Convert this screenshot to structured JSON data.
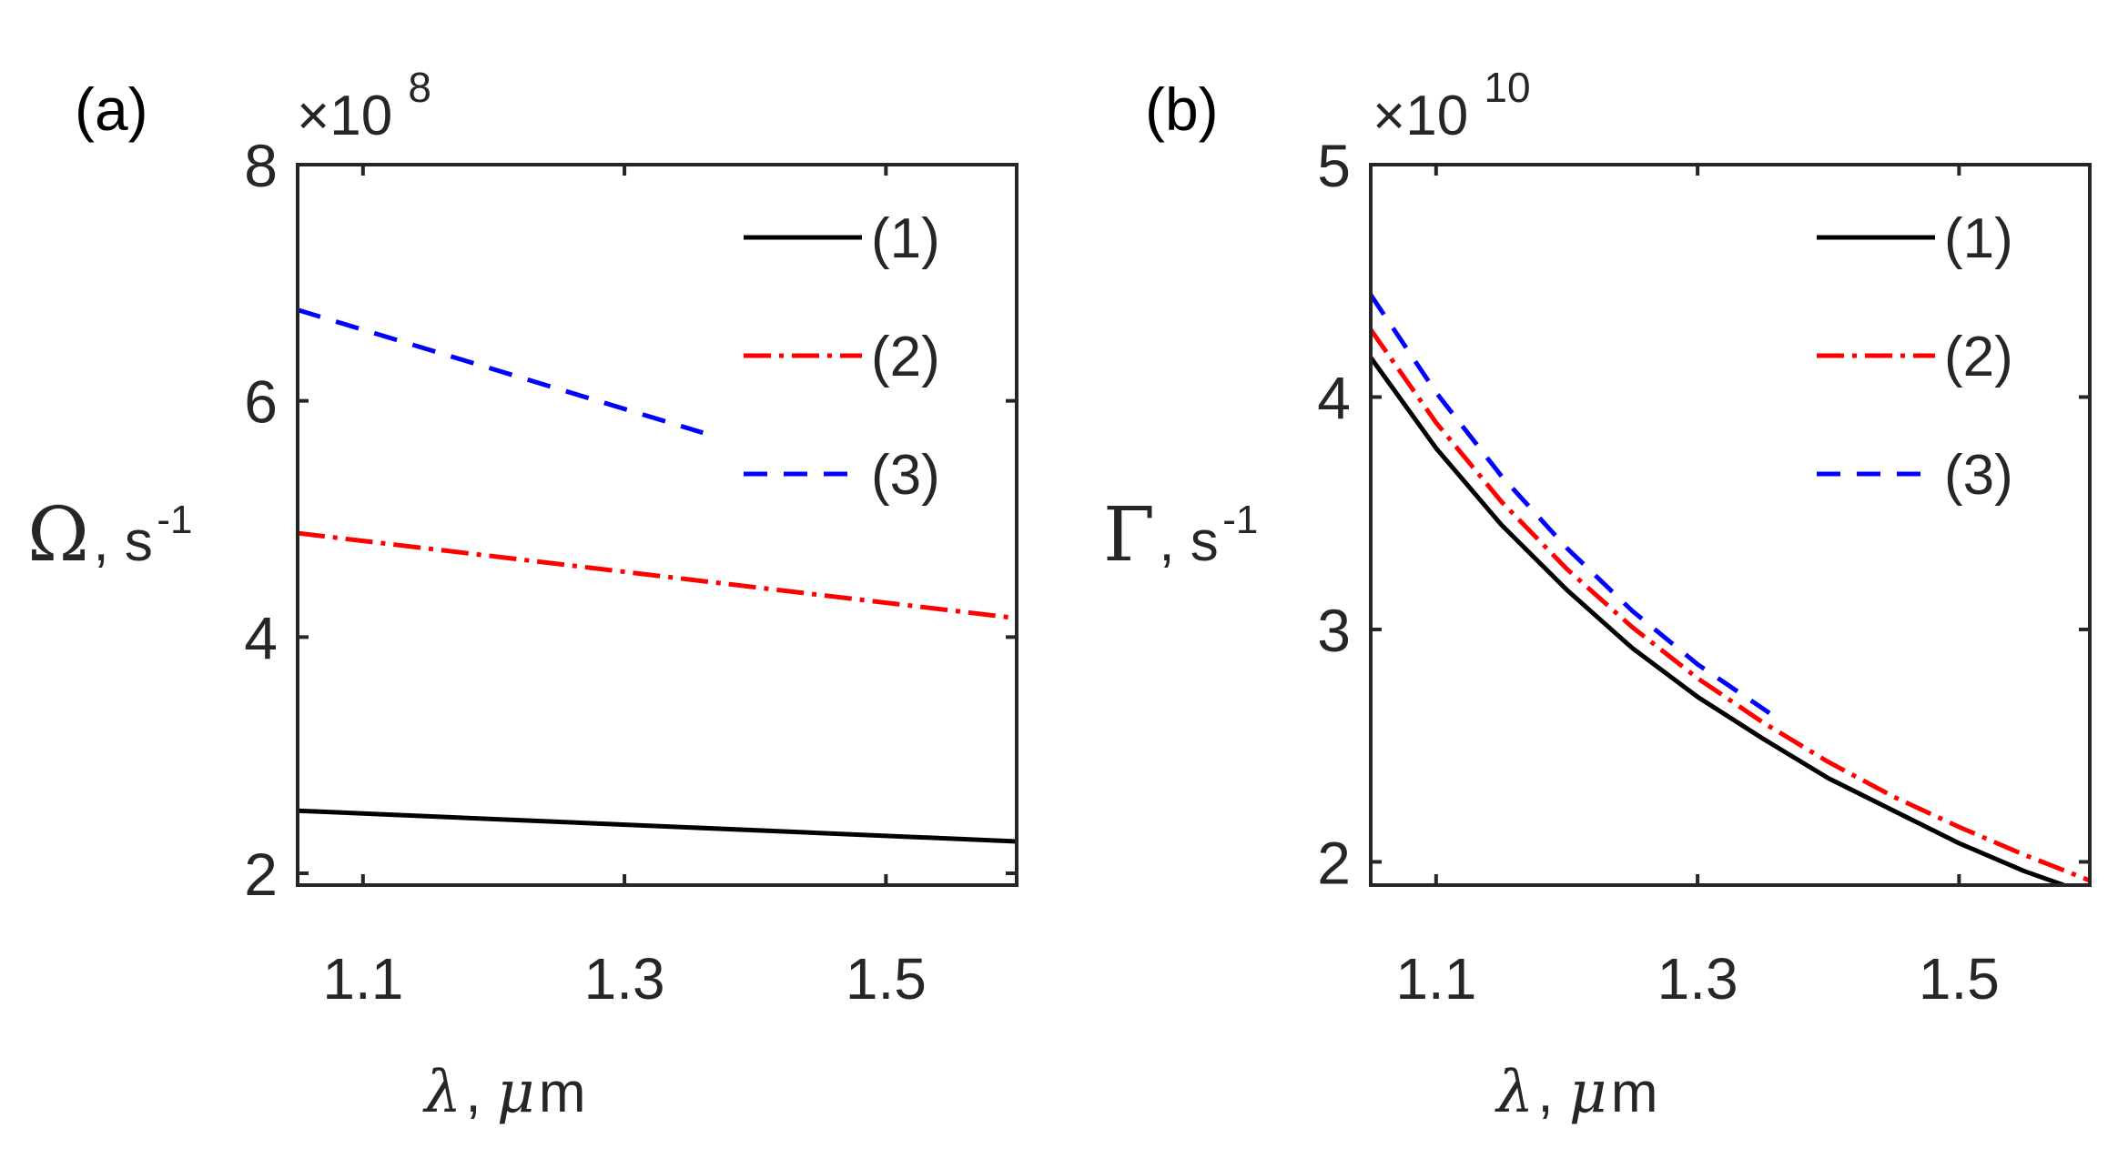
{
  "figure": {
    "panels": [
      {
        "panel_label": "(a)",
        "exponent_prefix": "×10",
        "exponent_power": "8",
        "ylabel_symbol": "Ω",
        "ylabel_unit": ", s",
        "ylabel_unit_power": "-1",
        "xlabel_symbol": "λ",
        "xlabel_mid": ", ",
        "xlabel_mu": "μ",
        "xlabel_unit": "m"
      },
      {
        "panel_label": "(b)",
        "exponent_prefix": "×10",
        "exponent_power": "10",
        "ylabel_symbol": "Γ",
        "ylabel_unit": ", s",
        "ylabel_unit_power": "-1",
        "xlabel_symbol": "λ",
        "xlabel_mid": ", ",
        "xlabel_mu": "μ",
        "xlabel_unit": "m"
      }
    ]
  },
  "chart_data": [
    {
      "type": "line",
      "title": "(a)",
      "xlabel": "λ, μm",
      "ylabel": "Ω, s-1",
      "y_scale_factor": "×10^8",
      "xlim": [
        1.05,
        1.6
      ],
      "ylim": [
        1.9,
        8
      ],
      "xticks": [
        1.1,
        1.3,
        1.5
      ],
      "xtick_labels": [
        "1.1",
        "1.3",
        "1.5"
      ],
      "yticks": [
        2,
        4,
        6,
        8
      ],
      "ytick_labels": [
        "2",
        "4",
        "6",
        "8"
      ],
      "legend_position": "top-right",
      "series": [
        {
          "name": "(1)",
          "color": "#000000",
          "style": "solid",
          "x": [
            1.05,
            1.6
          ],
          "y": [
            2.53,
            2.27
          ]
        },
        {
          "name": "(2)",
          "color": "#ff0000",
          "style": "dashdot",
          "x": [
            1.05,
            1.6
          ],
          "y": [
            4.88,
            4.16
          ]
        },
        {
          "name": "(3)",
          "color": "#0000ff",
          "style": "dashed",
          "x": [
            1.05,
            1.36
          ],
          "y": [
            6.77,
            5.73
          ]
        }
      ]
    },
    {
      "type": "line",
      "title": "(b)",
      "xlabel": "λ, μm",
      "ylabel": "Γ, s-1",
      "y_scale_factor": "×10^10",
      "xlim": [
        1.05,
        1.6
      ],
      "ylim": [
        1.9,
        5
      ],
      "xticks": [
        1.1,
        1.3,
        1.5
      ],
      "xtick_labels": [
        "1.1",
        "1.3",
        "1.5"
      ],
      "yticks": [
        2,
        3,
        4,
        5
      ],
      "ytick_labels": [
        "2",
        "3",
        "4",
        "5"
      ],
      "legend_position": "top-right",
      "series": [
        {
          "name": "(1)",
          "color": "#000000",
          "style": "solid",
          "x": [
            1.05,
            1.1,
            1.15,
            1.2,
            1.25,
            1.3,
            1.35,
            1.4,
            1.45,
            1.5,
            1.55,
            1.58
          ],
          "y": [
            4.17,
            3.78,
            3.45,
            3.17,
            2.92,
            2.71,
            2.53,
            2.36,
            2.22,
            2.08,
            1.96,
            1.9
          ]
        },
        {
          "name": "(2)",
          "color": "#ff0000",
          "style": "dashdot",
          "x": [
            1.05,
            1.1,
            1.15,
            1.2,
            1.25,
            1.3,
            1.35,
            1.4,
            1.45,
            1.5,
            1.55,
            1.6
          ],
          "y": [
            4.29,
            3.89,
            3.55,
            3.26,
            3.01,
            2.79,
            2.6,
            2.43,
            2.28,
            2.15,
            2.03,
            1.92
          ]
        },
        {
          "name": "(3)",
          "color": "#0000ff",
          "style": "dashed",
          "x": [
            1.05,
            1.1,
            1.15,
            1.2,
            1.25,
            1.3,
            1.355
          ],
          "y": [
            4.44,
            4.02,
            3.66,
            3.35,
            3.08,
            2.85,
            2.64
          ]
        }
      ]
    }
  ]
}
